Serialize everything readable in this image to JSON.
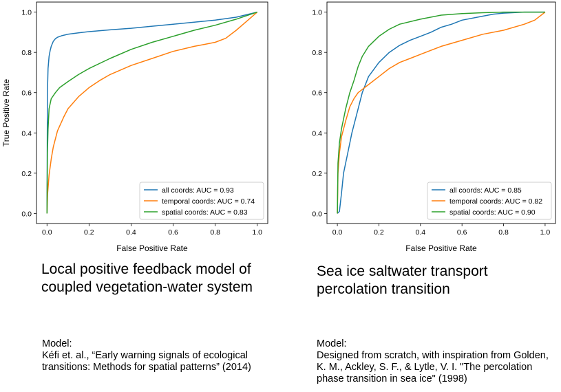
{
  "panels": [
    {
      "title": "Local positive feedback model of coupled vegetation-water system",
      "model_label": "Model:",
      "model_text": "Kéfi et. al., “Early warning signals of ecological transitions: Methods for spatial patterns” (2014)"
    },
    {
      "title": "Sea ice saltwater transport percolation transition",
      "model_label": "Model:",
      "model_text": "Designed from scratch, with inspiration from Golden, K. M., Ackley, S. F., & Lytle, V. I. \"The percolation phase transition in sea ice\" (1998)"
    }
  ],
  "chart_data": [
    {
      "type": "line",
      "title": "",
      "xlabel": "False Positive Rate",
      "ylabel": "True Positive Rate",
      "xlim": [
        -0.05,
        1.05
      ],
      "ylim": [
        -0.05,
        1.05
      ],
      "xticks": [
        "0.0",
        "0.2",
        "0.4",
        "0.6",
        "0.8",
        "1.0"
      ],
      "yticks": [
        "0.0",
        "0.2",
        "0.4",
        "0.6",
        "0.8",
        "1.0"
      ],
      "grid": false,
      "legend_position": "lower-right",
      "series": [
        {
          "name": "all coords: AUC = 0.93",
          "color": "#1f77b4",
          "x": [
            0,
            0.002,
            0.005,
            0.01,
            0.015,
            0.02,
            0.03,
            0.04,
            0.05,
            0.07,
            0.1,
            0.15,
            0.2,
            0.3,
            0.4,
            0.5,
            0.6,
            0.7,
            0.8,
            0.9,
            1.0
          ],
          "y": [
            0,
            0.6,
            0.72,
            0.78,
            0.81,
            0.83,
            0.855,
            0.868,
            0.875,
            0.883,
            0.89,
            0.897,
            0.903,
            0.912,
            0.92,
            0.93,
            0.94,
            0.95,
            0.96,
            0.975,
            1.0
          ]
        },
        {
          "name": "temporal coords: AUC = 0.74",
          "color": "#ff7f0e",
          "x": [
            0,
            0.003,
            0.01,
            0.02,
            0.03,
            0.05,
            0.08,
            0.1,
            0.15,
            0.2,
            0.25,
            0.3,
            0.4,
            0.5,
            0.6,
            0.7,
            0.75,
            0.8,
            0.85,
            0.9,
            0.95,
            1.0
          ],
          "y": [
            0,
            0.1,
            0.19,
            0.27,
            0.33,
            0.41,
            0.48,
            0.52,
            0.58,
            0.625,
            0.66,
            0.69,
            0.735,
            0.77,
            0.805,
            0.83,
            0.84,
            0.85,
            0.87,
            0.91,
            0.955,
            1.0
          ]
        },
        {
          "name": "spatial coords: AUC = 0.83",
          "color": "#2ca02c",
          "x": [
            0,
            0.002,
            0.005,
            0.01,
            0.02,
            0.04,
            0.06,
            0.08,
            0.1,
            0.15,
            0.2,
            0.3,
            0.4,
            0.5,
            0.6,
            0.7,
            0.8,
            0.9,
            1.0
          ],
          "y": [
            0,
            0.3,
            0.42,
            0.52,
            0.57,
            0.6,
            0.625,
            0.64,
            0.655,
            0.69,
            0.72,
            0.77,
            0.815,
            0.85,
            0.88,
            0.91,
            0.935,
            0.965,
            1.0
          ]
        }
      ]
    },
    {
      "type": "line",
      "title": "",
      "xlabel": "False Positive Rate",
      "ylabel": "",
      "xlim": [
        -0.05,
        1.05
      ],
      "ylim": [
        -0.05,
        1.05
      ],
      "xticks": [
        "0.0",
        "0.2",
        "0.4",
        "0.6",
        "0.8",
        "1.0"
      ],
      "yticks": [
        "0.0",
        "0.2",
        "0.4",
        "0.6",
        "0.8",
        "1.0"
      ],
      "grid": false,
      "legend_position": "lower-right",
      "series": [
        {
          "name": "all coords: AUC = 0.85",
          "color": "#1f77b4",
          "x": [
            0,
            0.01,
            0.02,
            0.03,
            0.05,
            0.07,
            0.1,
            0.12,
            0.15,
            0.2,
            0.25,
            0.3,
            0.35,
            0.4,
            0.45,
            0.5,
            0.55,
            0.6,
            0.7,
            0.75,
            0.8,
            0.9,
            1.0
          ],
          "y": [
            0,
            0.01,
            0.1,
            0.2,
            0.3,
            0.4,
            0.52,
            0.6,
            0.68,
            0.75,
            0.8,
            0.835,
            0.86,
            0.88,
            0.9,
            0.925,
            0.94,
            0.96,
            0.98,
            0.99,
            0.995,
            1.0,
            1.0
          ]
        },
        {
          "name": "temporal coords: AUC = 0.82",
          "color": "#ff7f0e",
          "x": [
            0,
            0.003,
            0.01,
            0.02,
            0.04,
            0.06,
            0.08,
            0.1,
            0.15,
            0.2,
            0.25,
            0.3,
            0.35,
            0.4,
            0.5,
            0.6,
            0.7,
            0.8,
            0.9,
            0.95,
            1.0
          ],
          "y": [
            0,
            0.2,
            0.3,
            0.38,
            0.46,
            0.53,
            0.57,
            0.6,
            0.64,
            0.68,
            0.72,
            0.75,
            0.77,
            0.79,
            0.83,
            0.86,
            0.89,
            0.91,
            0.94,
            0.96,
            1.0
          ]
        },
        {
          "name": "spatial coords: AUC = 0.90",
          "color": "#2ca02c",
          "x": [
            0,
            0.003,
            0.01,
            0.02,
            0.04,
            0.06,
            0.08,
            0.1,
            0.12,
            0.15,
            0.2,
            0.25,
            0.3,
            0.4,
            0.5,
            0.6,
            0.7,
            0.8,
            0.9,
            1.0
          ],
          "y": [
            0,
            0.25,
            0.35,
            0.42,
            0.52,
            0.6,
            0.66,
            0.73,
            0.78,
            0.83,
            0.88,
            0.915,
            0.94,
            0.965,
            0.985,
            0.993,
            0.997,
            1.0,
            1.0,
            1.0
          ]
        }
      ]
    }
  ]
}
